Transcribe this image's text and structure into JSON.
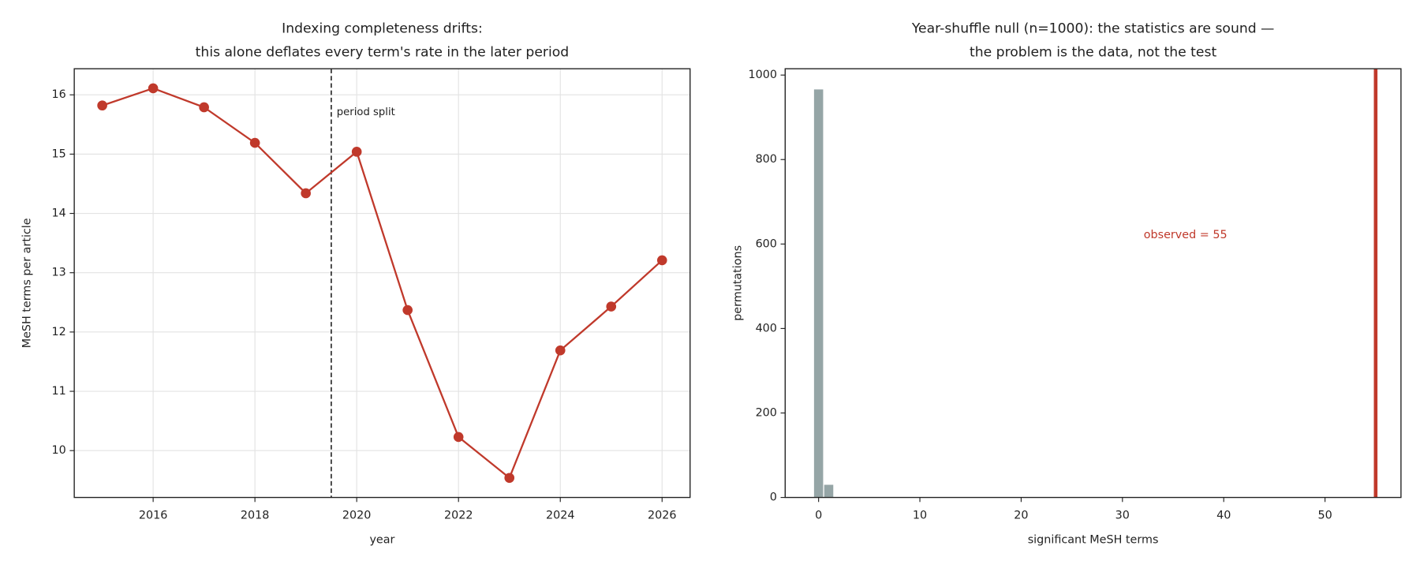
{
  "chart_data": [
    {
      "type": "line",
      "title": "Indexing completeness drifts:\nthis alone deflates every term's rate in the later period",
      "xlabel": "year",
      "ylabel": "MeSH terms per article",
      "x": [
        2015,
        2016,
        2017,
        2018,
        2019,
        2020,
        2021,
        2022,
        2023,
        2024,
        2025,
        2026
      ],
      "series": [
        {
          "name": "MeSH terms per article",
          "color": "#c0392b",
          "values": [
            15.82,
            16.11,
            15.79,
            15.19,
            14.34,
            15.04,
            12.37,
            10.23,
            9.54,
            11.69,
            12.43,
            13.21
          ]
        }
      ],
      "xlim": [
        2014.45,
        2026.55
      ],
      "xticks": [
        2016,
        2018,
        2020,
        2022,
        2024,
        2026
      ],
      "ylim": [
        9.21,
        16.44
      ],
      "yticks": [
        10,
        11,
        12,
        13,
        14,
        15,
        16
      ],
      "grid": true,
      "split": 2019.5,
      "split_label": "period split"
    },
    {
      "type": "histogram",
      "title": "Year-shuffle null (n=1000): the statistics are sound —\nthe problem is the data, not the test",
      "xlabel": "significant MeSH terms",
      "ylabel": "permutations",
      "bins": [
        -0.5,
        0.5,
        1.5
      ],
      "counts": [
        966,
        30
      ],
      "color": "#95a5a6",
      "observed": 55,
      "observed_color": "#c0392b",
      "observed_label": "observed = 55",
      "xlim": [
        -3.3,
        57.5
      ],
      "xticks": [
        0,
        10,
        20,
        30,
        40,
        50
      ],
      "ylim": [
        0,
        1015
      ],
      "yticks": [
        0,
        200,
        400,
        600,
        800,
        1000
      ],
      "grid": false
    }
  ]
}
